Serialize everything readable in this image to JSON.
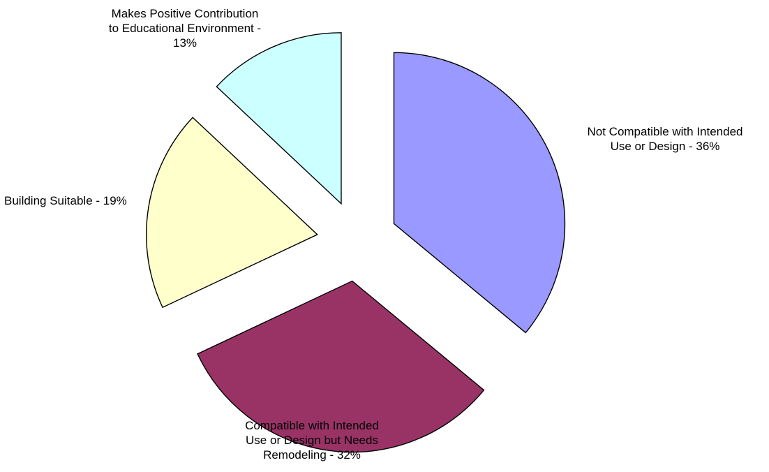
{
  "chart_data": {
    "type": "pie",
    "start_angle_deg": 0,
    "direction": "clockwise",
    "exploded": true,
    "categories": [
      "Not Compatible with Intended Use or Design",
      "Compatible with Intended Use or Design but Needs Remodeling",
      "Building Suitable",
      "Makes Positive Contribution to Educational Environment"
    ],
    "values": [
      36,
      32,
      19,
      13
    ],
    "unit": "%",
    "colors": [
      "#9999ff",
      "#993366",
      "#ffffcc",
      "#ccffff"
    ],
    "labels": [
      "Not Compatible with Intended\nUse or Design - 36%",
      "Compatible with Intended\nUse or Design but Needs\nRemodeling -  32%",
      "Building Suitable - 19%",
      "Makes Positive Contribution\nto Educational Environment -\n13%"
    ]
  }
}
